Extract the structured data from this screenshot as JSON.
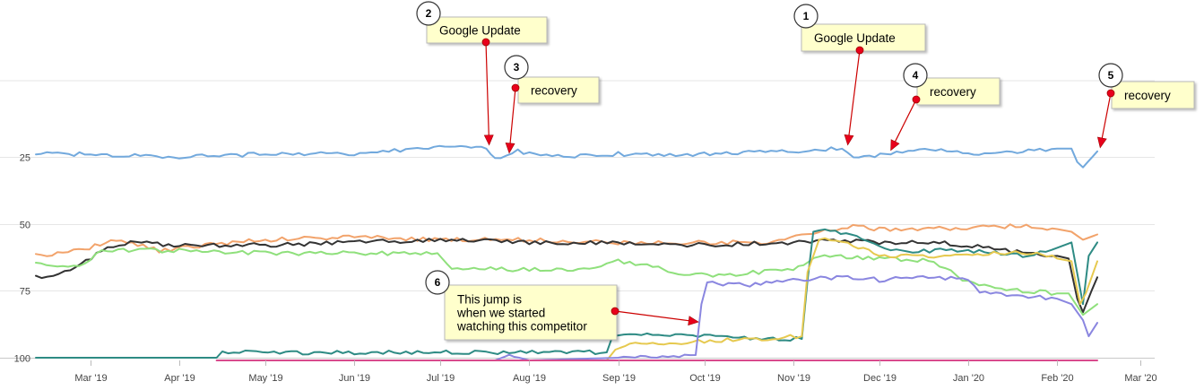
{
  "chart_data": {
    "type": "line",
    "title": "",
    "xlabel": "",
    "ylabel": "",
    "x_range": [
      "2019-02-10",
      "2020-03-06"
    ],
    "ylim": [
      0,
      101
    ],
    "y_inverted": true,
    "y_ticks": [
      {
        "value": 25,
        "label": "25"
      },
      {
        "value": 50,
        "label": "50"
      },
      {
        "value": 75,
        "label": "75"
      },
      {
        "value": 100,
        "label": "100"
      }
    ],
    "x_ticks": [
      {
        "date": "2019-03-01",
        "label": "Mar '19"
      },
      {
        "date": "2019-04-01",
        "label": "Apr '19"
      },
      {
        "date": "2019-05-01",
        "label": "May '19"
      },
      {
        "date": "2019-06-01",
        "label": "Jun '19"
      },
      {
        "date": "2019-07-01",
        "label": "Jul '19"
      },
      {
        "date": "2019-08-01",
        "label": "Aug '19"
      },
      {
        "date": "2019-09-01",
        "label": "Sep '19"
      },
      {
        "date": "2019-10-01",
        "label": "Oct '19"
      },
      {
        "date": "2019-11-01",
        "label": "Nov '19"
      },
      {
        "date": "2019-12-01",
        "label": "Dec '19"
      },
      {
        "date": "2020-01-01",
        "label": "Jan '20"
      },
      {
        "date": "2020-02-01",
        "label": "Feb '20"
      },
      {
        "date": "2020-03-01",
        "label": "Mar '20"
      }
    ],
    "grid": true,
    "series": [
      {
        "color": "#f2a36b",
        "points": [
          [
            "2019-02-10",
            62
          ],
          [
            "2019-02-25",
            60
          ],
          [
            "2019-03-10",
            56
          ],
          [
            "2019-03-25",
            60
          ],
          [
            "2019-04-10",
            58
          ],
          [
            "2019-05-01",
            56
          ],
          [
            "2019-06-01",
            55
          ],
          [
            "2019-07-01",
            56
          ],
          [
            "2019-08-01",
            56
          ],
          [
            "2019-09-01",
            57
          ],
          [
            "2019-10-01",
            57
          ],
          [
            "2019-10-25",
            57
          ],
          [
            "2019-11-10",
            53
          ],
          [
            "2019-11-20",
            51
          ],
          [
            "2019-12-01",
            52
          ],
          [
            "2019-12-20",
            52
          ],
          [
            "2020-01-10",
            51
          ],
          [
            "2020-01-25",
            51
          ],
          [
            "2020-02-01",
            52
          ],
          [
            "2020-02-06",
            53
          ],
          [
            "2020-02-10",
            56
          ],
          [
            "2020-02-15",
            54
          ]
        ]
      },
      {
        "color": "#333333",
        "points": [
          [
            "2019-02-10",
            70
          ],
          [
            "2019-02-22",
            68
          ],
          [
            "2019-03-05",
            60
          ],
          [
            "2019-03-15",
            57
          ],
          [
            "2019-04-01",
            58
          ],
          [
            "2019-05-01",
            58
          ],
          [
            "2019-06-01",
            57
          ],
          [
            "2019-07-01",
            56
          ],
          [
            "2019-08-01",
            57
          ],
          [
            "2019-09-01",
            57
          ],
          [
            "2019-10-01",
            58
          ],
          [
            "2019-11-01",
            57
          ],
          [
            "2019-11-15",
            56
          ],
          [
            "2019-12-01",
            57
          ],
          [
            "2019-12-20",
            57
          ],
          [
            "2020-01-10",
            59
          ],
          [
            "2020-01-20",
            61
          ],
          [
            "2020-02-01",
            62
          ],
          [
            "2020-02-05",
            63
          ],
          [
            "2020-02-08",
            78
          ],
          [
            "2020-02-10",
            83
          ],
          [
            "2020-02-13",
            75
          ],
          [
            "2020-02-15",
            70
          ]
        ]
      },
      {
        "color": "#8fe07c",
        "points": [
          [
            "2019-02-10",
            65
          ],
          [
            "2019-02-25",
            66
          ],
          [
            "2019-03-05",
            60
          ],
          [
            "2019-03-20",
            60
          ],
          [
            "2019-04-01",
            60
          ],
          [
            "2019-05-01",
            61
          ],
          [
            "2019-06-01",
            61
          ],
          [
            "2019-06-30",
            61
          ],
          [
            "2019-07-05",
            67
          ],
          [
            "2019-08-01",
            67
          ],
          [
            "2019-08-20",
            67
          ],
          [
            "2019-09-01",
            64
          ],
          [
            "2019-09-15",
            66
          ],
          [
            "2019-09-20",
            69
          ],
          [
            "2019-10-10",
            69
          ],
          [
            "2019-11-01",
            67
          ],
          [
            "2019-11-10",
            62
          ],
          [
            "2019-12-01",
            63
          ],
          [
            "2019-12-20",
            64
          ],
          [
            "2020-01-01",
            72
          ],
          [
            "2020-01-20",
            75
          ],
          [
            "2020-02-01",
            76
          ],
          [
            "2020-02-05",
            76
          ],
          [
            "2020-02-10",
            84
          ],
          [
            "2020-02-15",
            80
          ]
        ]
      },
      {
        "color": "#2e8b84",
        "points": [
          [
            "2019-02-10",
            100
          ],
          [
            "2019-04-14",
            100
          ],
          [
            "2019-04-16",
            98
          ],
          [
            "2019-08-28",
            98
          ],
          [
            "2019-08-30",
            92
          ],
          [
            "2019-09-05",
            91
          ],
          [
            "2019-10-01",
            92
          ],
          [
            "2019-10-25",
            93
          ],
          [
            "2019-11-04",
            93
          ],
          [
            "2019-11-06",
            71
          ],
          [
            "2019-11-08",
            53
          ],
          [
            "2019-11-12",
            52
          ],
          [
            "2019-11-25",
            55
          ],
          [
            "2019-12-05",
            60
          ],
          [
            "2020-01-01",
            60
          ],
          [
            "2020-01-20",
            62
          ],
          [
            "2020-02-01",
            59
          ],
          [
            "2020-02-06",
            57
          ],
          [
            "2020-02-10",
            80
          ],
          [
            "2020-02-12",
            62
          ],
          [
            "2020-02-15",
            57
          ]
        ]
      },
      {
        "color": "#e6c94f",
        "points": [
          [
            "2019-06-01",
            101
          ],
          [
            "2019-08-28",
            101
          ],
          [
            "2019-08-31",
            97
          ],
          [
            "2019-09-05",
            95
          ],
          [
            "2019-10-01",
            94
          ],
          [
            "2019-11-04",
            92
          ],
          [
            "2019-11-06",
            68
          ],
          [
            "2019-11-10",
            56
          ],
          [
            "2019-11-20",
            57
          ],
          [
            "2019-12-01",
            62
          ],
          [
            "2019-12-20",
            62
          ],
          [
            "2020-01-10",
            61
          ],
          [
            "2020-01-25",
            61
          ],
          [
            "2020-02-01",
            63
          ],
          [
            "2020-02-06",
            64
          ],
          [
            "2020-02-09",
            80
          ],
          [
            "2020-02-11",
            76
          ],
          [
            "2020-02-15",
            64
          ]
        ]
      },
      {
        "color": "#8a86e0",
        "points": [
          [
            "2019-07-20",
            101
          ],
          [
            "2019-07-25",
            99
          ],
          [
            "2019-08-01",
            101
          ],
          [
            "2019-09-01",
            100
          ],
          [
            "2019-09-28",
            99
          ],
          [
            "2019-09-30",
            80
          ],
          [
            "2019-10-02",
            72
          ],
          [
            "2019-10-15",
            73
          ],
          [
            "2019-11-01",
            71
          ],
          [
            "2019-11-20",
            70
          ],
          [
            "2019-12-01",
            71
          ],
          [
            "2019-12-20",
            70
          ],
          [
            "2020-01-01",
            71
          ],
          [
            "2020-01-05",
            75
          ],
          [
            "2020-01-20",
            77
          ],
          [
            "2020-02-01",
            78
          ],
          [
            "2020-02-06",
            80
          ],
          [
            "2020-02-10",
            86
          ],
          [
            "2020-02-12",
            92
          ],
          [
            "2020-02-15",
            87
          ]
        ]
      },
      {
        "color": "#d94a8c",
        "points": [
          [
            "2019-04-14",
            101
          ],
          [
            "2020-02-15",
            101
          ]
        ]
      },
      {
        "color": "#72a9dd",
        "points": [
          [
            "2019-02-10",
            24
          ],
          [
            "2019-03-01",
            24
          ],
          [
            "2019-04-01",
            25
          ],
          [
            "2019-05-01",
            24
          ],
          [
            "2019-06-01",
            24
          ],
          [
            "2019-06-25",
            22
          ],
          [
            "2019-07-10",
            21
          ],
          [
            "2019-07-17",
            22
          ],
          [
            "2019-07-20",
            26
          ],
          [
            "2019-07-28",
            23
          ],
          [
            "2019-08-15",
            25
          ],
          [
            "2019-09-01",
            24
          ],
          [
            "2019-10-01",
            24
          ],
          [
            "2019-11-01",
            23
          ],
          [
            "2019-11-18",
            22
          ],
          [
            "2019-11-22",
            25
          ],
          [
            "2019-12-05",
            24
          ],
          [
            "2019-12-15",
            22
          ],
          [
            "2020-01-01",
            24
          ],
          [
            "2020-01-20",
            23
          ],
          [
            "2020-02-01",
            22
          ],
          [
            "2020-02-06",
            22
          ],
          [
            "2020-02-08",
            27
          ],
          [
            "2020-02-10",
            29
          ],
          [
            "2020-02-15",
            23
          ]
        ]
      }
    ],
    "annotations": [
      {
        "num": "1",
        "text": "Google Update",
        "lines": [
          "Google Update"
        ],
        "target": [
          "2019-11-20",
          22
        ]
      },
      {
        "num": "2",
        "text": "Google Update",
        "lines": [
          "Google Update"
        ],
        "target": [
          "2019-07-18",
          22
        ]
      },
      {
        "num": "3",
        "text": "recovery",
        "lines": [
          "recovery"
        ],
        "target": [
          "2019-07-25",
          25
        ]
      },
      {
        "num": "4",
        "text": "recovery",
        "lines": [
          "recovery"
        ],
        "target": [
          "2019-12-05",
          24
        ]
      },
      {
        "num": "5",
        "text": "recovery",
        "lines": [
          "recovery"
        ],
        "target": [
          "2020-02-16",
          23
        ]
      },
      {
        "num": "6",
        "text": "This jump is when we started watching this competitor",
        "lines": [
          "This jump is",
          "when we started",
          "watching this competitor"
        ],
        "target": [
          "2019-09-29",
          88
        ]
      }
    ]
  },
  "colors": {
    "note_fill": "#ffffcc",
    "note_border": "#b8b8b8",
    "marker": "#e8001c",
    "arrow": "#cc0000",
    "grid": "#e6e6e6"
  }
}
